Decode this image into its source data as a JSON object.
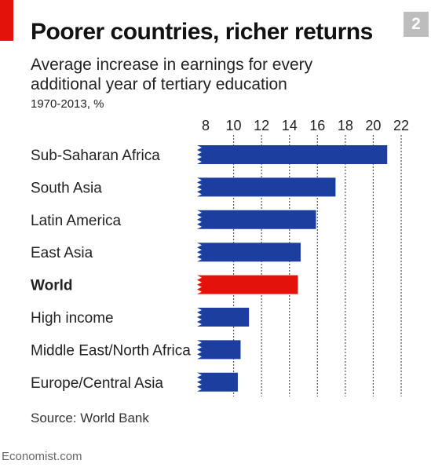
{
  "header": {
    "title": "Poorer countries, richer returns",
    "chart_number": "2",
    "accent_color": "#e3120b"
  },
  "footer": {
    "source": "Source: World Bank",
    "brand": "Economist.com"
  },
  "chart_data": {
    "type": "bar",
    "orientation": "horizontal",
    "title": "Poorer countries, richer returns",
    "subtitle": "Average increase in earnings for every additional year of tertiary education",
    "units_label": "1970-2013, %",
    "categories": [
      "Sub-Saharan Africa",
      "South Asia",
      "Latin America",
      "East Asia",
      "World",
      "High income",
      "Middle East/North Africa",
      "Europe/Central Asia"
    ],
    "values": [
      21.0,
      17.3,
      15.9,
      14.8,
      14.6,
      11.1,
      10.5,
      10.3
    ],
    "highlight": "World",
    "bar_color": "#1c3f9f",
    "highlight_color": "#e3120b",
    "xlim": [
      8,
      22
    ],
    "xticks": [
      8,
      10,
      12,
      14,
      16,
      18,
      20,
      22
    ],
    "axis_position": "top",
    "grid": true
  }
}
